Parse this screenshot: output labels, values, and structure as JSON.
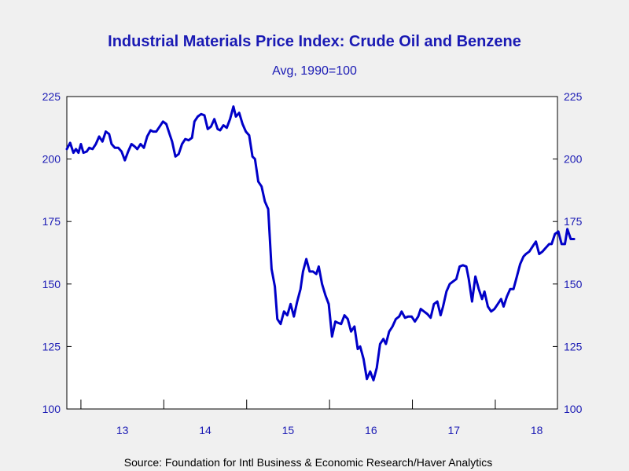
{
  "chart_data": {
    "type": "line",
    "title": "Industrial Materials Price Index: Crude Oil and Benzene",
    "subtitle": "Avg, 1990=100",
    "source": "Source:  Foundation for Intl Business & Economic Research/Haver Analytics",
    "ylim": [
      100,
      225
    ],
    "y_ticks": [
      100,
      125,
      150,
      175,
      200,
      225
    ],
    "y_tick_labels": [
      "100",
      "125",
      "150",
      "175",
      "200",
      "225"
    ],
    "y_axis_right": true,
    "x_start": 2012.33,
    "x_end": 2018.25,
    "x_tick_positions": [
      2012.5,
      2013.5,
      2014.5,
      2015.5,
      2016.5,
      2017.5
    ],
    "x_labels": [
      {
        "label": "13",
        "at": 2013.0
      },
      {
        "label": "14",
        "at": 2014.0
      },
      {
        "label": "15",
        "at": 2015.0
      },
      {
        "label": "16",
        "at": 2016.0
      },
      {
        "label": "17",
        "at": 2017.0
      },
      {
        "label": "18",
        "at": 2018.0
      }
    ],
    "grid": false,
    "line_color": "#0000c8",
    "text_color": "#1a1ab4",
    "series": [
      {
        "points": [
          [
            2012.33,
            204
          ],
          [
            2012.37,
            206.5
          ],
          [
            2012.41,
            202.5
          ],
          [
            2012.44,
            204
          ],
          [
            2012.47,
            202.5
          ],
          [
            2012.5,
            206
          ],
          [
            2012.53,
            202.5
          ],
          [
            2012.57,
            203
          ],
          [
            2012.6,
            204.5
          ],
          [
            2012.64,
            204
          ],
          [
            2012.68,
            206
          ],
          [
            2012.72,
            209
          ],
          [
            2012.76,
            207
          ],
          [
            2012.8,
            211
          ],
          [
            2012.84,
            210
          ],
          [
            2012.87,
            206
          ],
          [
            2012.91,
            204.5
          ],
          [
            2012.95,
            204.5
          ],
          [
            2012.99,
            203
          ],
          [
            2013.03,
            199.5
          ],
          [
            2013.07,
            203
          ],
          [
            2013.11,
            206
          ],
          [
            2013.15,
            205
          ],
          [
            2013.18,
            204
          ],
          [
            2013.22,
            206
          ],
          [
            2013.26,
            204.5
          ],
          [
            2013.3,
            209
          ],
          [
            2013.34,
            211.5
          ],
          [
            2013.37,
            211
          ],
          [
            2013.41,
            211
          ],
          [
            2013.45,
            213
          ],
          [
            2013.49,
            215
          ],
          [
            2013.53,
            214
          ],
          [
            2013.57,
            210
          ],
          [
            2013.6,
            207
          ],
          [
            2013.64,
            201
          ],
          [
            2013.68,
            202
          ],
          [
            2013.72,
            206
          ],
          [
            2013.76,
            208
          ],
          [
            2013.8,
            207.5
          ],
          [
            2013.84,
            208.5
          ],
          [
            2013.87,
            215
          ],
          [
            2013.91,
            217
          ],
          [
            2013.95,
            218
          ],
          [
            2013.99,
            217.5
          ],
          [
            2014.03,
            212
          ],
          [
            2014.07,
            213
          ],
          [
            2014.11,
            216
          ],
          [
            2014.15,
            212
          ],
          [
            2014.18,
            211.5
          ],
          [
            2014.22,
            213.5
          ],
          [
            2014.26,
            212.5
          ],
          [
            2014.3,
            216
          ],
          [
            2014.34,
            221
          ],
          [
            2014.37,
            217
          ],
          [
            2014.41,
            218.5
          ],
          [
            2014.45,
            214
          ],
          [
            2014.49,
            211
          ],
          [
            2014.53,
            209.5
          ],
          [
            2014.57,
            201
          ],
          [
            2014.6,
            200
          ],
          [
            2014.64,
            191
          ],
          [
            2014.68,
            189
          ],
          [
            2014.72,
            183
          ],
          [
            2014.76,
            180
          ],
          [
            2014.8,
            156
          ],
          [
            2014.84,
            149
          ],
          [
            2014.87,
            136
          ],
          [
            2014.91,
            134
          ],
          [
            2014.95,
            139
          ],
          [
            2014.99,
            137.5
          ],
          [
            2015.03,
            142
          ],
          [
            2015.07,
            137
          ],
          [
            2015.11,
            143
          ],
          [
            2015.15,
            148
          ],
          [
            2015.18,
            155
          ],
          [
            2015.22,
            160
          ],
          [
            2015.26,
            155
          ],
          [
            2015.3,
            155
          ],
          [
            2015.34,
            154
          ],
          [
            2015.37,
            157
          ],
          [
            2015.41,
            150
          ],
          [
            2015.45,
            145.5
          ],
          [
            2015.49,
            142
          ],
          [
            2015.53,
            129
          ],
          [
            2015.57,
            135
          ],
          [
            2015.6,
            134.5
          ],
          [
            2015.64,
            134
          ],
          [
            2015.68,
            137.5
          ],
          [
            2015.72,
            136
          ],
          [
            2015.76,
            131
          ],
          [
            2015.8,
            133
          ],
          [
            2015.84,
            124
          ],
          [
            2015.87,
            125
          ],
          [
            2015.91,
            120
          ],
          [
            2015.95,
            112
          ],
          [
            2015.99,
            115
          ],
          [
            2016.03,
            111.5
          ],
          [
            2016.07,
            116.5
          ],
          [
            2016.11,
            126
          ],
          [
            2016.15,
            128
          ],
          [
            2016.18,
            126
          ],
          [
            2016.22,
            131
          ],
          [
            2016.26,
            133
          ],
          [
            2016.3,
            136
          ],
          [
            2016.34,
            137
          ],
          [
            2016.37,
            139
          ],
          [
            2016.41,
            136.5
          ],
          [
            2016.45,
            137
          ],
          [
            2016.49,
            137
          ],
          [
            2016.53,
            135
          ],
          [
            2016.57,
            137
          ],
          [
            2016.6,
            140
          ],
          [
            2016.64,
            139
          ],
          [
            2016.68,
            138
          ],
          [
            2016.72,
            136.5
          ],
          [
            2016.76,
            142
          ],
          [
            2016.8,
            143
          ],
          [
            2016.84,
            137.5
          ],
          [
            2016.87,
            141
          ],
          [
            2016.91,
            147
          ],
          [
            2016.95,
            150
          ],
          [
            2016.99,
            151
          ],
          [
            2017.03,
            152
          ],
          [
            2017.07,
            157
          ],
          [
            2017.11,
            157.5
          ],
          [
            2017.15,
            157
          ],
          [
            2017.18,
            152
          ],
          [
            2017.22,
            143
          ],
          [
            2017.26,
            153
          ],
          [
            2017.3,
            148
          ],
          [
            2017.34,
            144
          ],
          [
            2017.37,
            147
          ],
          [
            2017.41,
            141
          ],
          [
            2017.45,
            139
          ],
          [
            2017.49,
            140
          ],
          [
            2017.53,
            142
          ],
          [
            2017.57,
            144
          ],
          [
            2017.6,
            141
          ],
          [
            2017.64,
            145
          ],
          [
            2017.68,
            148
          ],
          [
            2017.72,
            148
          ],
          [
            2017.76,
            153
          ],
          [
            2017.8,
            158
          ],
          [
            2017.84,
            161
          ],
          [
            2017.87,
            162
          ],
          [
            2017.91,
            163
          ],
          [
            2017.95,
            165
          ],
          [
            2017.99,
            167
          ],
          [
            2018.03,
            162
          ],
          [
            2018.07,
            163
          ],
          [
            2018.11,
            164.5
          ],
          [
            2018.15,
            166
          ],
          [
            2018.18,
            166
          ],
          [
            2018.22,
            170
          ],
          [
            2018.26,
            171
          ],
          [
            2018.3,
            166
          ],
          [
            2018.34,
            166
          ],
          [
            2018.37,
            172
          ],
          [
            2018.41,
            168
          ],
          [
            2018.45,
            168
          ]
        ]
      }
    ]
  }
}
